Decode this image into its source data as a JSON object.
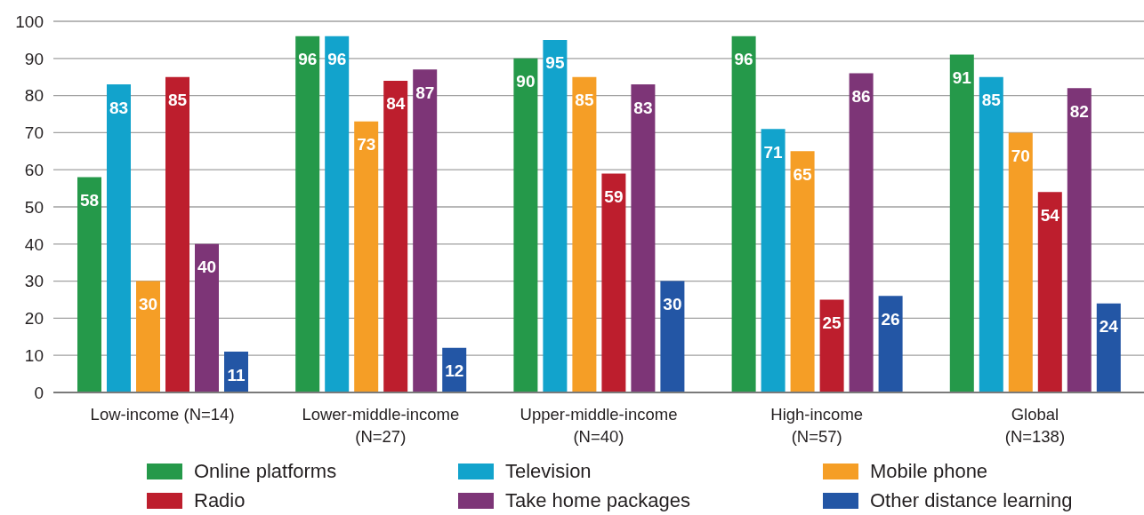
{
  "chart_data": {
    "type": "bar",
    "categories": [
      "Low-income (N=14)",
      "Lower-middle-income\n(N=27)",
      "Upper-middle-income\n(N=40)",
      "High-income\n(N=57)",
      "Global\n(N=138)"
    ],
    "series": [
      {
        "name": "Online platforms",
        "color": "#25994a",
        "values": [
          58,
          96,
          90,
          96,
          91
        ]
      },
      {
        "name": "Television",
        "color": "#12a3cc",
        "values": [
          83,
          96,
          95,
          71,
          85
        ]
      },
      {
        "name": "Mobile phone",
        "color": "#f59e26",
        "values": [
          30,
          73,
          85,
          65,
          70
        ]
      },
      {
        "name": "Radio",
        "color": "#bd1e2d",
        "values": [
          85,
          84,
          59,
          25,
          54
        ]
      },
      {
        "name": "Take home packages",
        "color": "#7d3577",
        "values": [
          40,
          87,
          83,
          86,
          82
        ]
      },
      {
        "name": "Other distance learning",
        "color": "#2356a5",
        "values": [
          11,
          12,
          30,
          26,
          24
        ]
      }
    ],
    "ylim": [
      0,
      100
    ],
    "yticks": [
      0,
      10,
      20,
      30,
      40,
      50,
      60,
      70,
      80,
      90,
      100
    ],
    "grid": "y",
    "legend": "bottom",
    "data_labels": true
  }
}
